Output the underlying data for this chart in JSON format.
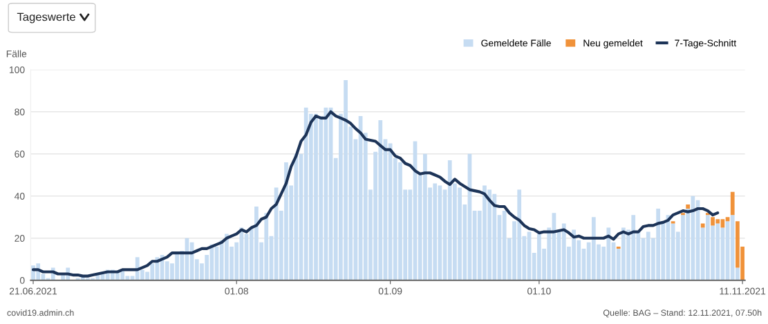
{
  "chart_data": {
    "type": "bar",
    "ylabel": "Fälle",
    "stacked": true,
    "grid": "y",
    "legend": "top right",
    "annotations": [
      "Tageswerte",
      "covid19.admin.ch",
      "Quelle: BAG – Stand: 12.11.2021, 07.50h"
    ],
    "ylim": [
      0,
      100
    ],
    "yticks": [
      0,
      20,
      40,
      60,
      80,
      100
    ],
    "xlim": [
      "2021-06-20T12:00",
      "2021-11-11T12:00"
    ],
    "xticks": [
      {
        "value": "2021-06-21",
        "label": "21.06.2021"
      },
      {
        "value": "2021-08-01",
        "label": "01.08"
      },
      {
        "value": "2021-09-01",
        "label": "01.09"
      },
      {
        "value": "2021-10-01",
        "label": "01.10"
      },
      {
        "value": "2021-11-11",
        "label": "11.11.2021"
      }
    ],
    "x": [
      "2021-06-21",
      "2021-06-22",
      "2021-06-23",
      "2021-06-24",
      "2021-06-25",
      "2021-06-26",
      "2021-06-27",
      "2021-06-28",
      "2021-06-29",
      "2021-06-30",
      "2021-07-01",
      "2021-07-02",
      "2021-07-03",
      "2021-07-04",
      "2021-07-05",
      "2021-07-06",
      "2021-07-07",
      "2021-07-08",
      "2021-07-09",
      "2021-07-10",
      "2021-07-11",
      "2021-07-12",
      "2021-07-13",
      "2021-07-14",
      "2021-07-15",
      "2021-07-16",
      "2021-07-17",
      "2021-07-18",
      "2021-07-19",
      "2021-07-20",
      "2021-07-21",
      "2021-07-22",
      "2021-07-23",
      "2021-07-24",
      "2021-07-25",
      "2021-07-26",
      "2021-07-27",
      "2021-07-28",
      "2021-07-29",
      "2021-07-30",
      "2021-07-31",
      "2021-08-01",
      "2021-08-02",
      "2021-08-03",
      "2021-08-04",
      "2021-08-05",
      "2021-08-06",
      "2021-08-07",
      "2021-08-08",
      "2021-08-09",
      "2021-08-10",
      "2021-08-11",
      "2021-08-12",
      "2021-08-13",
      "2021-08-14",
      "2021-08-15",
      "2021-08-16",
      "2021-08-17",
      "2021-08-18",
      "2021-08-19",
      "2021-08-20",
      "2021-08-21",
      "2021-08-22",
      "2021-08-23",
      "2021-08-24",
      "2021-08-25",
      "2021-08-26",
      "2021-08-27",
      "2021-08-28",
      "2021-08-29",
      "2021-08-30",
      "2021-08-31",
      "2021-09-01",
      "2021-09-02",
      "2021-09-03",
      "2021-09-04",
      "2021-09-05",
      "2021-09-06",
      "2021-09-07",
      "2021-09-08",
      "2021-09-09",
      "2021-09-10",
      "2021-09-11",
      "2021-09-12",
      "2021-09-13",
      "2021-09-14",
      "2021-09-15",
      "2021-09-16",
      "2021-09-17",
      "2021-09-18",
      "2021-09-19",
      "2021-09-20",
      "2021-09-21",
      "2021-09-22",
      "2021-09-23",
      "2021-09-24",
      "2021-09-25",
      "2021-09-26",
      "2021-09-27",
      "2021-09-28",
      "2021-09-29",
      "2021-09-30",
      "2021-10-01",
      "2021-10-02",
      "2021-10-03",
      "2021-10-04",
      "2021-10-05",
      "2021-10-06",
      "2021-10-07",
      "2021-10-08",
      "2021-10-09",
      "2021-10-10",
      "2021-10-11",
      "2021-10-12",
      "2021-10-13",
      "2021-10-14",
      "2021-10-15",
      "2021-10-16",
      "2021-10-17",
      "2021-10-18",
      "2021-10-19",
      "2021-10-20",
      "2021-10-21",
      "2021-10-22",
      "2021-10-23",
      "2021-10-24",
      "2021-10-25",
      "2021-10-26",
      "2021-10-27",
      "2021-10-28",
      "2021-10-29",
      "2021-10-30",
      "2021-10-31",
      "2021-11-01",
      "2021-11-02",
      "2021-11-03",
      "2021-11-04",
      "2021-11-05",
      "2021-11-06",
      "2021-11-07",
      "2021-11-08",
      "2021-11-09",
      "2021-11-10",
      "2021-11-11"
    ],
    "series": [
      {
        "name": "Gemeldete Fälle",
        "color": "#c6dcf2",
        "values": [
          7,
          8,
          3,
          1,
          6,
          0,
          3,
          6,
          null,
          1,
          2,
          1,
          1,
          3,
          3,
          5,
          5,
          4,
          5,
          2,
          2,
          11,
          5,
          4,
          8,
          11,
          12,
          9,
          8,
          13,
          14,
          20,
          18,
          10,
          8,
          12,
          17,
          16,
          19,
          22,
          16,
          18,
          25,
          22,
          25,
          35,
          18,
          32,
          21,
          44,
          33,
          56,
          45,
          60,
          60,
          82,
          79,
          79,
          78,
          82,
          82,
          58,
          79,
          95,
          73,
          67,
          78,
          70,
          43,
          61,
          76,
          67,
          65,
          58,
          56,
          43,
          43,
          66,
          50,
          60,
          44,
          46,
          45,
          43,
          57,
          46,
          44,
          36,
          60,
          33,
          33,
          45,
          43,
          41,
          31,
          33,
          20,
          28,
          43,
          21,
          23,
          13,
          22,
          15,
          25,
          32,
          23,
          27,
          16,
          24,
          19,
          15,
          18,
          30,
          17,
          16,
          25,
          18,
          15,
          25,
          24,
          31,
          23,
          20,
          23,
          20,
          34,
          28,
          31,
          27,
          23,
          31,
          34,
          40,
          38,
          25,
          31,
          26,
          27,
          25,
          28,
          31,
          6,
          0
        ]
      },
      {
        "name": "Neu gemeldet",
        "color": "#f0923a",
        "values": [
          null,
          null,
          null,
          null,
          null,
          null,
          null,
          null,
          null,
          null,
          null,
          null,
          null,
          null,
          null,
          null,
          null,
          null,
          null,
          null,
          null,
          null,
          null,
          null,
          null,
          null,
          null,
          null,
          null,
          null,
          null,
          null,
          null,
          null,
          null,
          null,
          null,
          null,
          null,
          null,
          null,
          null,
          null,
          null,
          null,
          null,
          null,
          null,
          null,
          null,
          null,
          null,
          null,
          null,
          null,
          null,
          null,
          null,
          null,
          null,
          null,
          null,
          null,
          null,
          null,
          null,
          null,
          null,
          null,
          null,
          null,
          null,
          null,
          null,
          null,
          null,
          null,
          null,
          null,
          null,
          null,
          null,
          null,
          null,
          null,
          null,
          null,
          null,
          null,
          null,
          null,
          null,
          null,
          null,
          null,
          null,
          null,
          null,
          null,
          null,
          null,
          null,
          null,
          null,
          null,
          null,
          null,
          null,
          null,
          null,
          null,
          null,
          null,
          null,
          null,
          null,
          null,
          null,
          1,
          null,
          null,
          null,
          null,
          null,
          null,
          null,
          null,
          null,
          null,
          1,
          null,
          1,
          2,
          null,
          null,
          2,
          1,
          4,
          2,
          4,
          2,
          11,
          22,
          16
        ]
      },
      {
        "name": "7-Tage-Schnitt",
        "type": "line",
        "color": "#1d3458",
        "values": [
          5,
          5,
          4,
          4,
          4,
          3,
          3,
          3,
          2.5,
          2.5,
          2,
          2,
          2.5,
          3,
          3.5,
          4,
          4,
          4,
          5,
          5,
          5,
          5,
          6,
          7,
          9,
          9,
          10,
          11,
          13,
          13,
          13,
          13,
          13,
          14,
          15,
          15,
          16,
          17,
          18,
          20,
          21,
          22,
          24,
          23,
          25,
          26,
          29,
          30,
          34,
          36,
          41,
          46,
          54,
          59,
          66,
          69,
          75,
          78,
          77,
          77,
          80,
          78,
          77,
          76,
          74.5,
          72,
          70,
          67,
          66.5,
          66,
          64,
          62,
          62,
          59,
          58,
          55.5,
          54.5,
          52,
          50.5,
          51,
          51,
          50,
          49,
          47,
          45.5,
          48,
          46,
          44.5,
          43,
          42.5,
          42,
          41,
          38,
          35.5,
          35,
          35,
          32,
          30,
          28.5,
          26,
          24.5,
          24,
          22.5,
          23,
          23,
          23,
          23.5,
          24,
          22.5,
          20.5,
          21,
          20,
          20,
          20,
          20,
          20,
          21,
          19.5,
          22,
          23,
          22,
          23,
          23,
          25.5,
          26,
          26,
          27,
          27.5,
          28.5,
          31,
          32,
          33,
          32.5,
          33,
          34,
          34,
          33,
          31,
          32,
          null,
          null,
          null,
          null,
          null
        ]
      }
    ]
  }
}
